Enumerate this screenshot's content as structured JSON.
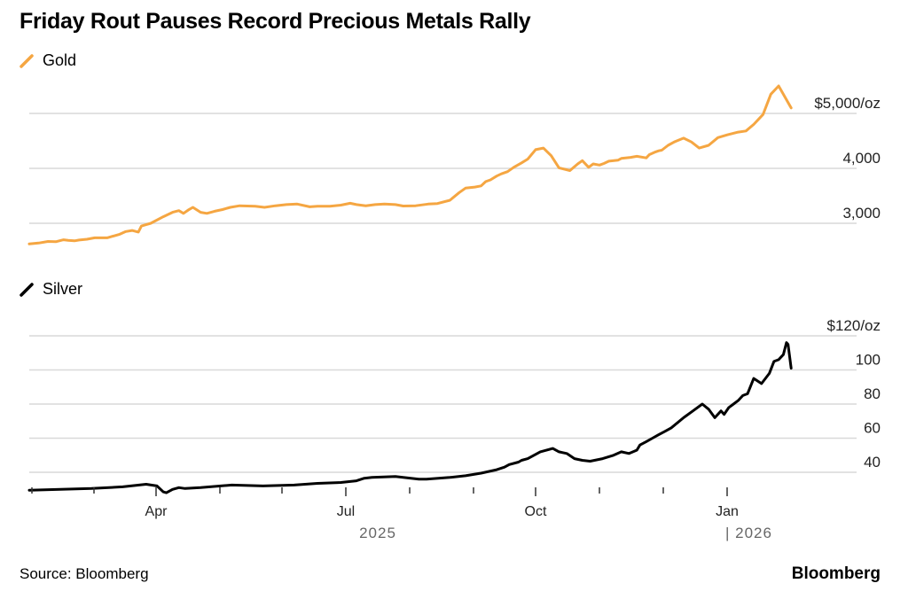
{
  "title": "Friday Rout Pauses Record Precious Metals Rally",
  "source": "Source: Bloomberg",
  "brand": "Bloomberg",
  "colors": {
    "gold": "#F5A642",
    "silver": "#000000",
    "grid": "#d9d9d9"
  },
  "chart_data": [
    {
      "type": "line",
      "legend": "Gold",
      "ylabel": "$/oz",
      "ylim": [
        2600,
        5200
      ],
      "yticks": [
        {
          "value": 5000,
          "label": "$5,000/oz"
        },
        {
          "value": 4000,
          "label": "4,000"
        },
        {
          "value": 3000,
          "label": "3,000"
        }
      ],
      "series": [
        {
          "name": "Gold",
          "x": [
            0,
            6,
            12,
            17,
            22,
            25,
            29,
            32,
            37,
            42,
            50,
            58,
            62,
            66,
            70,
            72,
            78,
            86,
            92,
            96,
            99,
            102,
            105,
            110,
            114,
            119,
            124,
            129,
            135,
            145,
            151,
            158,
            165,
            172,
            180,
            185,
            193,
            200,
            206,
            210,
            216,
            222,
            228,
            235,
            240,
            248,
            256,
            262,
            270,
            276,
            280,
            286,
            290,
            293,
            296,
            300,
            303,
            307,
            311,
            316,
            320,
            325,
            330,
            335,
            340,
            347,
            352,
            355,
            359,
            362,
            366,
            369,
            372,
            378,
            380,
            386,
            390,
            396,
            398,
            402,
            404,
            406,
            410,
            414,
            420,
            425,
            430,
            436,
            442,
            448,
            455,
            460,
            465,
            471,
            476,
            481,
            489
          ],
          "values": [
            2625,
            2640,
            2670,
            2665,
            2700,
            2690,
            2680,
            2695,
            2710,
            2735,
            2735,
            2800,
            2850,
            2870,
            2840,
            2950,
            3000,
            3120,
            3200,
            3230,
            3180,
            3240,
            3290,
            3200,
            3180,
            3220,
            3250,
            3290,
            3320,
            3310,
            3290,
            3320,
            3340,
            3350,
            3300,
            3310,
            3310,
            3330,
            3365,
            3340,
            3320,
            3340,
            3350,
            3340,
            3315,
            3320,
            3350,
            3360,
            3420,
            3560,
            3640,
            3660,
            3680,
            3760,
            3790,
            3860,
            3900,
            3940,
            4020,
            4100,
            4170,
            4340,
            4370,
            4230,
            4010,
            3960,
            4080,
            4140,
            4020,
            4080,
            4060,
            4090,
            4130,
            4150,
            4180,
            4200,
            4220,
            4190,
            4250,
            4300,
            4320,
            4330,
            4420,
            4480,
            4550,
            4480,
            4370,
            4420,
            4560,
            4610,
            4660,
            4680,
            4800,
            4980,
            5350,
            5500,
            5100
          ]
        }
      ]
    },
    {
      "type": "line",
      "legend": "Silver",
      "ylabel": "$/oz",
      "ylim": [
        28,
        125
      ],
      "yticks": [
        {
          "value": 120,
          "label": "$120/oz"
        },
        {
          "value": 100,
          "label": "100"
        },
        {
          "value": 80,
          "label": "80"
        },
        {
          "value": 60,
          "label": "60"
        },
        {
          "value": 40,
          "label": "40"
        }
      ],
      "series": [
        {
          "name": "Silver",
          "x": [
            0,
            20,
            40,
            60,
            75,
            82,
            86,
            88,
            92,
            96,
            100,
            110,
            130,
            150,
            170,
            185,
            200,
            210,
            215,
            220,
            235,
            245,
            250,
            255,
            270,
            280,
            290,
            300,
            305,
            308,
            314,
            316,
            320,
            328,
            336,
            340,
            345,
            350,
            355,
            360,
            368,
            375,
            380,
            385,
            390,
            392,
            396,
            400,
            404,
            408,
            412,
            416,
            420,
            426,
            432,
            436,
            440,
            444,
            446,
            449,
            452,
            455,
            458,
            461,
            465,
            470,
            475,
            478,
            481,
            484,
            486,
            487,
            489
          ],
          "values": [
            29.5,
            30.0,
            30.5,
            31.5,
            33.0,
            32.0,
            28.5,
            28.0,
            30.0,
            31.0,
            30.5,
            31.0,
            32.5,
            32.0,
            32.5,
            33.5,
            34.0,
            35.0,
            36.5,
            37.0,
            37.5,
            36.5,
            36.0,
            36.0,
            37.0,
            38.0,
            39.5,
            41.5,
            43.0,
            44.5,
            46.0,
            47.0,
            48.0,
            52.0,
            54.0,
            52.0,
            51.0,
            48.0,
            47.0,
            46.5,
            48.0,
            50.0,
            52.0,
            51.0,
            53.0,
            56.0,
            58.0,
            60.0,
            62.0,
            64.0,
            66.0,
            69.0,
            72.0,
            76.0,
            80.0,
            77.0,
            72.0,
            76.0,
            74.0,
            78.0,
            80.0,
            82.0,
            85.0,
            86.0,
            95.0,
            92.0,
            98.0,
            105.0,
            106.0,
            109.0,
            116.0,
            115.0,
            101.0
          ]
        }
      ]
    }
  ],
  "xaxis": {
    "labels": [
      "Apr",
      "Jul",
      "Oct",
      "Jan"
    ],
    "years": [
      "2025",
      "| 2026"
    ]
  }
}
